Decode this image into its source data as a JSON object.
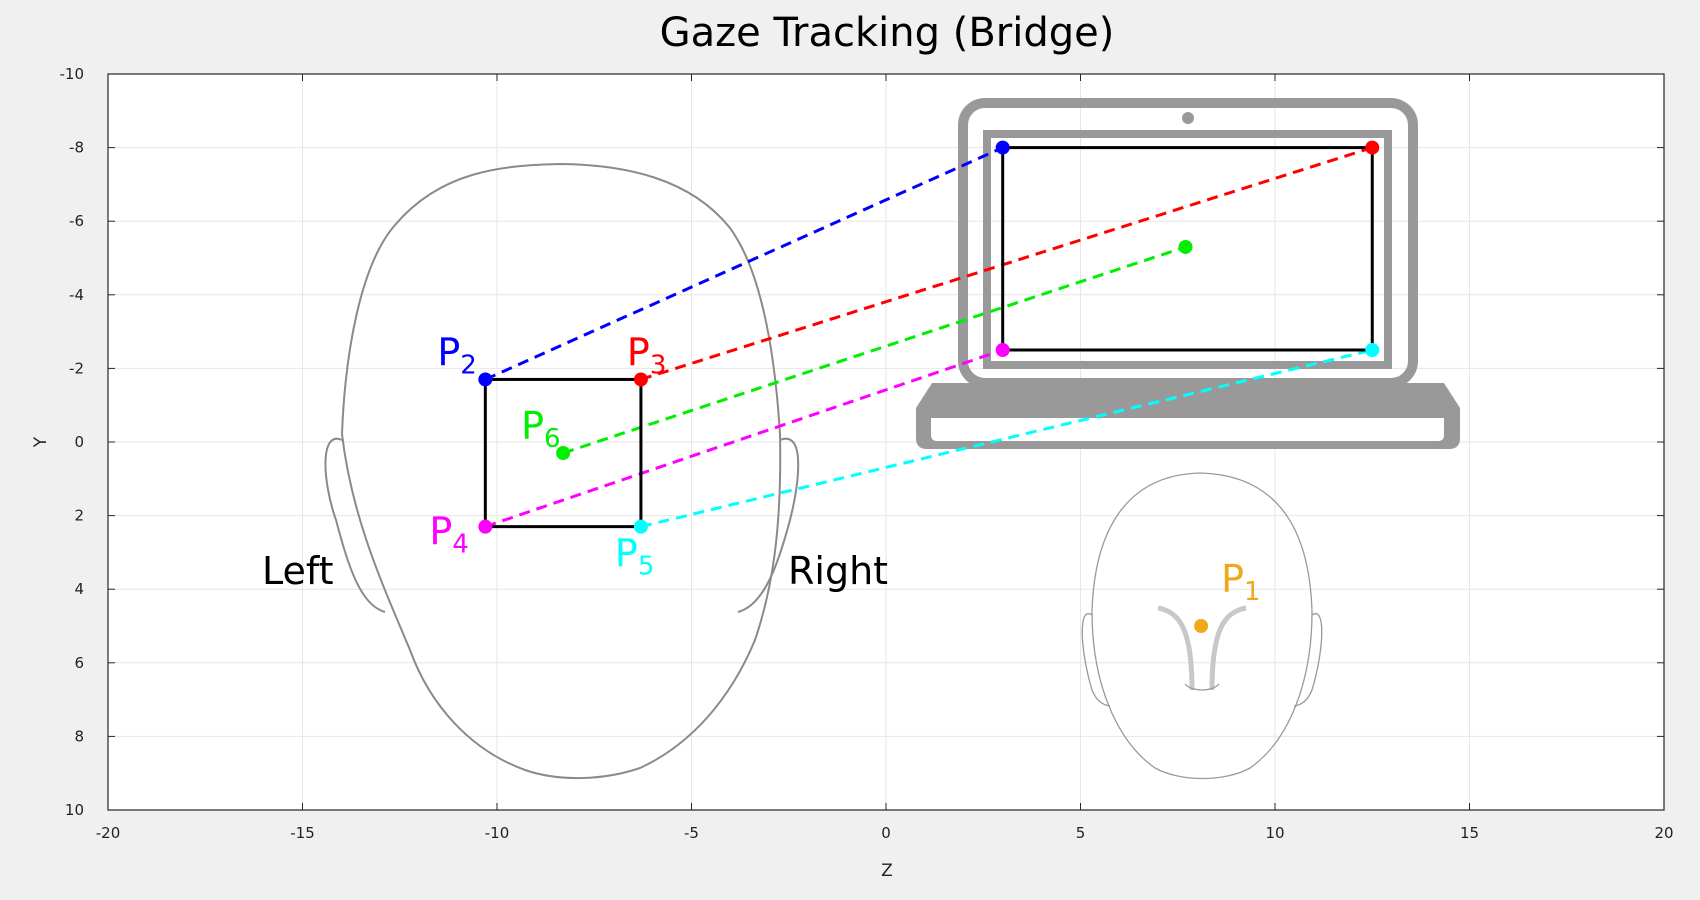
{
  "chart_data": {
    "type": "scatter",
    "title": "Gaze Tracking (Bridge)",
    "xlabel": "Z",
    "ylabel": "Y",
    "xlim": [
      -20,
      20
    ],
    "ylim": [
      -10,
      10
    ],
    "y_reversed": true,
    "grid": true,
    "xticks": [
      -20,
      -15,
      -10,
      -5,
      0,
      5,
      10,
      15,
      20
    ],
    "yticks": [
      -10,
      -8,
      -6,
      -4,
      -2,
      0,
      2,
      4,
      6,
      8,
      10
    ],
    "side_labels": {
      "left": "Left",
      "right": "Right"
    },
    "face_points": [
      {
        "label": "P",
        "sub": "2",
        "color": "#0000ff",
        "z": -10.3,
        "y": -1.7
      },
      {
        "label": "P",
        "sub": "3",
        "color": "#ff0000",
        "z": -6.3,
        "y": -1.7
      },
      {
        "label": "P",
        "sub": "6",
        "color": "#00ee00",
        "z": -8.3,
        "y": 0.3
      },
      {
        "label": "P",
        "sub": "4",
        "color": "#ff00ff",
        "z": -10.3,
        "y": 2.3
      },
      {
        "label": "P",
        "sub": "5",
        "color": "#00ffff",
        "z": -6.3,
        "y": 2.3
      }
    ],
    "screen_points": [
      {
        "color": "#0000ff",
        "z": 3.0,
        "y": -8.0
      },
      {
        "color": "#ff0000",
        "z": 12.5,
        "y": -8.0
      },
      {
        "color": "#00ee00",
        "z": 7.7,
        "y": -5.3
      },
      {
        "color": "#ff00ff",
        "z": 3.0,
        "y": -2.5
      },
      {
        "color": "#00ffff",
        "z": 12.5,
        "y": -2.5
      }
    ],
    "bridge_point": {
      "label": "P",
      "sub": "1",
      "color": "#f0a818",
      "z": 8.1,
      "y": 5.0
    },
    "face_box": {
      "z_min": -10.3,
      "z_max": -6.3,
      "y_min": -1.7,
      "y_max": 2.3
    },
    "screen_box": {
      "z_min": 3.0,
      "z_max": 12.5,
      "y_min": -8.0,
      "y_max": -2.5
    }
  }
}
